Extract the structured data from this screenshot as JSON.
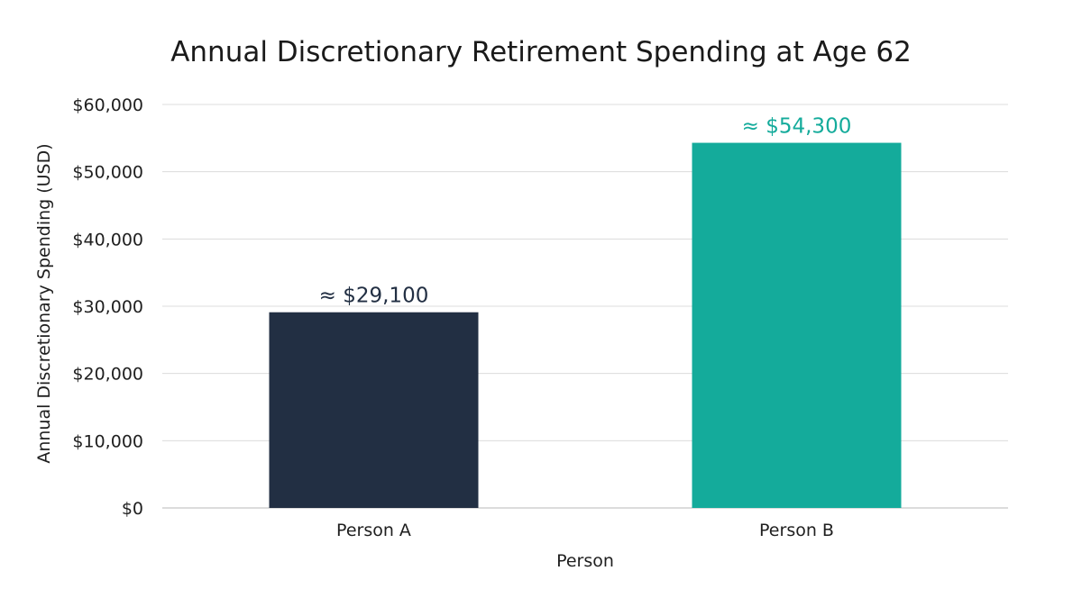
{
  "chart_data": {
    "type": "bar",
    "title": "Annual Discretionary Retirement Spending at Age 62",
    "xlabel": "Person",
    "ylabel": "Annual Discretionary Spending (USD)",
    "categories": [
      "Person A",
      "Person B"
    ],
    "values": [
      29100,
      54300
    ],
    "data_labels": [
      "≈ $29,100",
      "≈ $54,300"
    ],
    "bar_colors": [
      "#222f43",
      "#14ab9b"
    ],
    "label_colors": [
      "#222f43",
      "#14ab9b"
    ],
    "ylim": [
      0,
      60000
    ],
    "yticks": [
      0,
      10000,
      20000,
      30000,
      40000,
      50000,
      60000
    ],
    "ytick_labels": [
      "$0",
      "$10,000",
      "$20,000",
      "$30,000",
      "$40,000",
      "$50,000",
      "$60,000"
    ],
    "grid": true,
    "legend": "none"
  }
}
